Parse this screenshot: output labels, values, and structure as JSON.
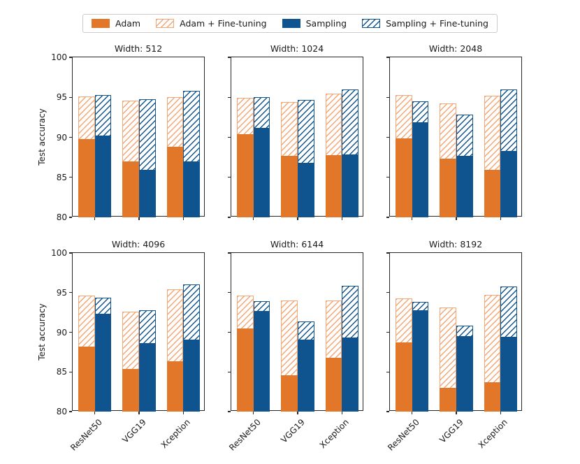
{
  "figure": {
    "ylabel": "Test accuracy",
    "background": "#ffffff"
  },
  "colors": {
    "orange": "#e2772a",
    "orange_light": "#f5a673",
    "blue": "#0f538f",
    "spine": "#262626",
    "text": "#1a1a1a",
    "legend_border": "#cccccc"
  },
  "legend": {
    "position": "upper center",
    "items": [
      {
        "label": "Adam",
        "swatch": "solid",
        "color_key": "orange"
      },
      {
        "label": "Adam + Fine-tuning",
        "swatch": "hatched",
        "color_key": "orange_light"
      },
      {
        "label": "Sampling",
        "swatch": "solid",
        "color_key": "blue"
      },
      {
        "label": "Sampling + Fine-tuning",
        "swatch": "hatched",
        "color_key": "blue"
      }
    ]
  },
  "chart_data": [
    {
      "type": "bar",
      "title": "Width: 512",
      "categories": [
        "ResNet50",
        "VGG19",
        "Xception"
      ],
      "ylim": [
        80,
        100
      ],
      "yticks": [
        80,
        85,
        90,
        95,
        100
      ],
      "grid": false,
      "series": [
        {
          "name": "Adam",
          "color_key": "orange",
          "pattern": "solid",
          "slot": "left",
          "values": [
            89.8,
            87.0,
            88.8
          ]
        },
        {
          "name": "Adam + Fine-tuning",
          "color_key": "orange_light",
          "pattern": "hatched",
          "slot": "left",
          "values": [
            95.1,
            94.6,
            95.0
          ]
        },
        {
          "name": "Sampling",
          "color_key": "blue",
          "pattern": "solid",
          "slot": "right",
          "values": [
            90.2,
            85.9,
            87.0
          ]
        },
        {
          "name": "Sampling + Fine-tuning",
          "color_key": "blue",
          "pattern": "hatched",
          "slot": "right",
          "values": [
            95.3,
            94.8,
            95.8
          ]
        }
      ]
    },
    {
      "type": "bar",
      "title": "Width: 1024",
      "categories": [
        "ResNet50",
        "VGG19",
        "Xception"
      ],
      "ylim": [
        80,
        100
      ],
      "yticks": [
        80,
        85,
        90,
        95,
        100
      ],
      "grid": false,
      "series": [
        {
          "name": "Adam",
          "color_key": "orange",
          "pattern": "solid",
          "slot": "left",
          "values": [
            90.4,
            87.7,
            87.8
          ]
        },
        {
          "name": "Adam + Fine-tuning",
          "color_key": "orange_light",
          "pattern": "hatched",
          "slot": "left",
          "values": [
            94.9,
            94.4,
            95.5
          ]
        },
        {
          "name": "Sampling",
          "color_key": "blue",
          "pattern": "solid",
          "slot": "right",
          "values": [
            91.2,
            86.8,
            87.9
          ]
        },
        {
          "name": "Sampling + Fine-tuning",
          "color_key": "blue",
          "pattern": "hatched",
          "slot": "right",
          "values": [
            95.0,
            94.7,
            96.0
          ]
        }
      ]
    },
    {
      "type": "bar",
      "title": "Width: 2048",
      "categories": [
        "ResNet50",
        "VGG19",
        "Xception"
      ],
      "ylim": [
        80,
        100
      ],
      "yticks": [
        80,
        85,
        90,
        95,
        100
      ],
      "grid": false,
      "series": [
        {
          "name": "Adam",
          "color_key": "orange",
          "pattern": "solid",
          "slot": "left",
          "values": [
            89.9,
            87.3,
            85.9
          ]
        },
        {
          "name": "Adam + Fine-tuning",
          "color_key": "orange_light",
          "pattern": "hatched",
          "slot": "left",
          "values": [
            95.3,
            94.2,
            95.2
          ]
        },
        {
          "name": "Sampling",
          "color_key": "blue",
          "pattern": "solid",
          "slot": "right",
          "values": [
            91.9,
            87.7,
            88.3
          ]
        },
        {
          "name": "Sampling + Fine-tuning",
          "color_key": "blue",
          "pattern": "hatched",
          "slot": "right",
          "values": [
            94.5,
            92.8,
            96.0
          ]
        }
      ]
    },
    {
      "type": "bar",
      "title": "Width: 4096",
      "categories": [
        "ResNet50",
        "VGG19",
        "Xception"
      ],
      "ylim": [
        80,
        100
      ],
      "yticks": [
        80,
        85,
        90,
        95,
        100
      ],
      "grid": false,
      "series": [
        {
          "name": "Adam",
          "color_key": "orange",
          "pattern": "solid",
          "slot": "left",
          "values": [
            88.2,
            85.4,
            86.3
          ]
        },
        {
          "name": "Adam + Fine-tuning",
          "color_key": "orange_light",
          "pattern": "hatched",
          "slot": "left",
          "values": [
            94.6,
            92.6,
            95.4
          ]
        },
        {
          "name": "Sampling",
          "color_key": "blue",
          "pattern": "solid",
          "slot": "right",
          "values": [
            92.3,
            88.6,
            89.1
          ]
        },
        {
          "name": "Sampling + Fine-tuning",
          "color_key": "blue",
          "pattern": "hatched",
          "slot": "right",
          "values": [
            94.4,
            92.8,
            96.0
          ]
        }
      ]
    },
    {
      "type": "bar",
      "title": "Width: 6144",
      "categories": [
        "ResNet50",
        "VGG19",
        "Xception"
      ],
      "ylim": [
        80,
        100
      ],
      "yticks": [
        80,
        85,
        90,
        95,
        100
      ],
      "grid": false,
      "series": [
        {
          "name": "Adam",
          "color_key": "orange",
          "pattern": "solid",
          "slot": "left",
          "values": [
            90.5,
            84.6,
            86.8
          ]
        },
        {
          "name": "Adam + Fine-tuning",
          "color_key": "orange_light",
          "pattern": "hatched",
          "slot": "left",
          "values": [
            94.6,
            94.0,
            94.0
          ]
        },
        {
          "name": "Sampling",
          "color_key": "blue",
          "pattern": "solid",
          "slot": "right",
          "values": [
            92.7,
            89.1,
            89.3
          ]
        },
        {
          "name": "Sampling + Fine-tuning",
          "color_key": "blue",
          "pattern": "hatched",
          "slot": "right",
          "values": [
            93.9,
            91.4,
            95.9
          ]
        }
      ]
    },
    {
      "type": "bar",
      "title": "Width: 8192",
      "categories": [
        "ResNet50",
        "VGG19",
        "Xception"
      ],
      "ylim": [
        80,
        100
      ],
      "yticks": [
        80,
        85,
        90,
        95,
        100
      ],
      "grid": false,
      "series": [
        {
          "name": "Adam",
          "color_key": "orange",
          "pattern": "solid",
          "slot": "left",
          "values": [
            88.7,
            83.0,
            83.7
          ]
        },
        {
          "name": "Adam + Fine-tuning",
          "color_key": "orange_light",
          "pattern": "hatched",
          "slot": "left",
          "values": [
            94.3,
            93.1,
            94.7
          ]
        },
        {
          "name": "Sampling",
          "color_key": "blue",
          "pattern": "solid",
          "slot": "right",
          "values": [
            92.8,
            89.5,
            89.4
          ]
        },
        {
          "name": "Sampling + Fine-tuning",
          "color_key": "blue",
          "pattern": "hatched",
          "slot": "right",
          "values": [
            93.8,
            90.8,
            95.8
          ]
        }
      ]
    }
  ]
}
